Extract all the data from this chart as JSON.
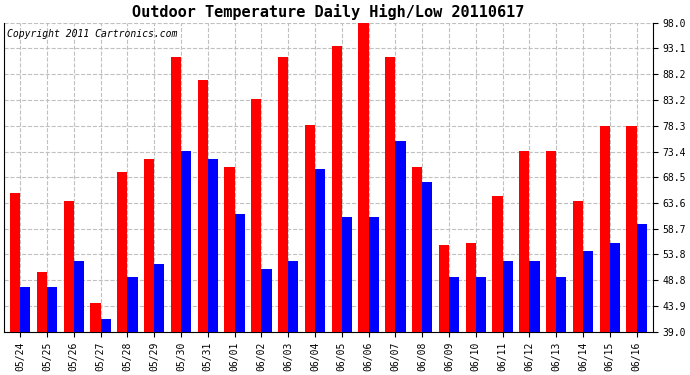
{
  "title": "Outdoor Temperature Daily High/Low 20110617",
  "copyright": "Copyright 2011 Cartronics.com",
  "dates": [
    "05/24",
    "05/25",
    "05/26",
    "05/27",
    "05/28",
    "05/29",
    "05/30",
    "05/31",
    "06/01",
    "06/02",
    "06/03",
    "06/04",
    "06/05",
    "06/06",
    "06/07",
    "06/08",
    "06/09",
    "06/10",
    "06/11",
    "06/12",
    "06/13",
    "06/14",
    "06/15",
    "06/16"
  ],
  "highs": [
    65.5,
    50.5,
    64.0,
    44.5,
    69.5,
    72.0,
    91.5,
    87.0,
    70.5,
    83.5,
    91.5,
    78.5,
    93.5,
    98.0,
    91.5,
    70.5,
    55.5,
    56.0,
    65.0,
    73.5,
    73.5,
    64.0,
    78.3,
    78.3
  ],
  "lows": [
    47.5,
    47.5,
    52.5,
    41.5,
    49.5,
    52.0,
    73.5,
    72.0,
    61.5,
    51.0,
    52.5,
    70.0,
    61.0,
    61.0,
    75.5,
    67.5,
    49.5,
    49.5,
    52.5,
    52.5,
    49.5,
    54.5,
    56.0,
    59.5
  ],
  "bar_color_high": "#ff0000",
  "bar_color_low": "#0000ff",
  "background_color": "#ffffff",
  "plot_bg_color": "#ffffff",
  "grid_color": "#c0c0c0",
  "yticks": [
    39.0,
    43.9,
    48.8,
    53.8,
    58.7,
    63.6,
    68.5,
    73.4,
    78.3,
    83.2,
    88.2,
    93.1,
    98.0
  ],
  "ylim_min": 39.0,
  "ylim_max": 98.0,
  "title_fontsize": 11,
  "copyright_fontsize": 7,
  "tick_fontsize": 7,
  "bar_width": 0.38
}
